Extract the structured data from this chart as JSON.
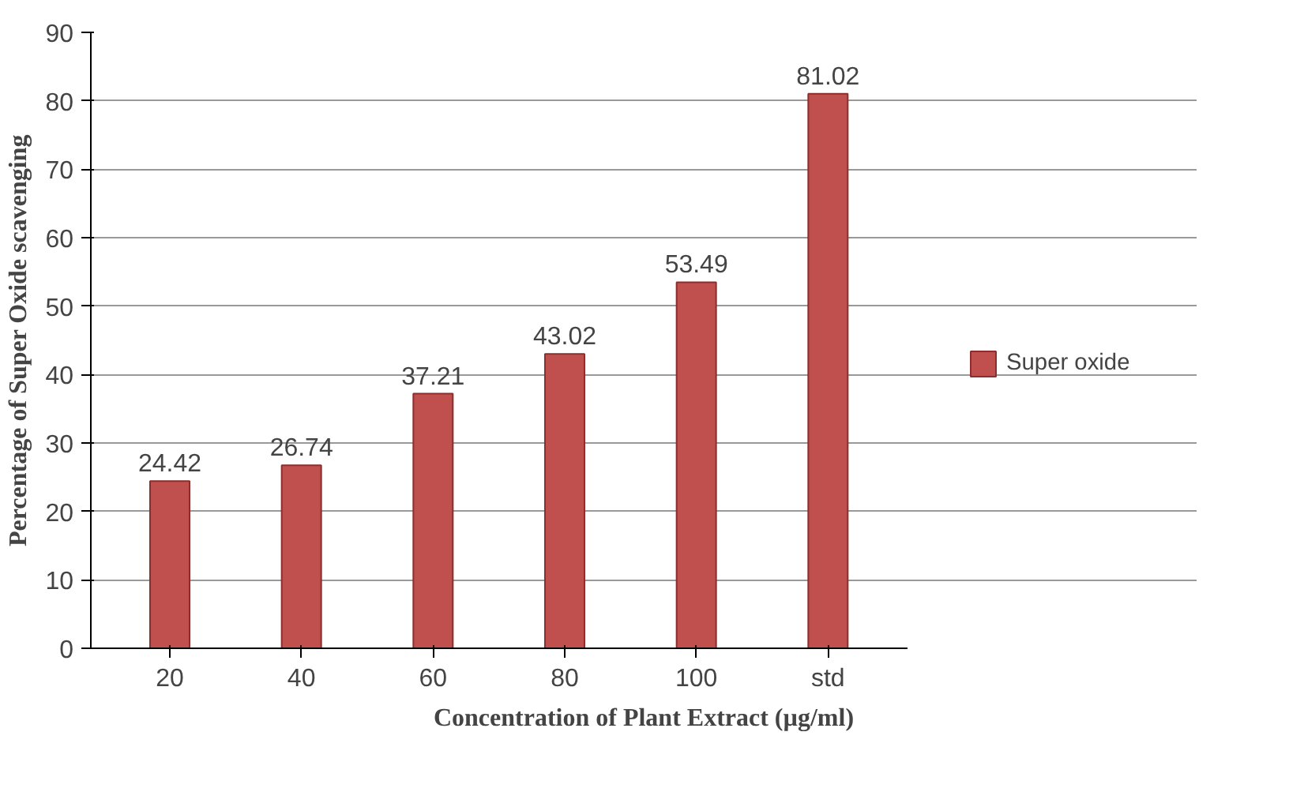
{
  "chart_data": {
    "type": "bar",
    "xlabel": "Concentration of Plant Extract (µg/ml)",
    "ylabel": "Percentage of Super Oxide scavenging",
    "categories": [
      "20",
      "40",
      "60",
      "80",
      "100",
      "std"
    ],
    "series": [
      {
        "name": "Super oxide",
        "color": "#c0504d",
        "values": [
          24.42,
          26.74,
          37.21,
          43.02,
          53.49,
          81.02
        ]
      }
    ],
    "ylim": [
      0,
      90
    ],
    "yticks": [
      0,
      10,
      20,
      30,
      40,
      50,
      60,
      70,
      80,
      90
    ],
    "grid": "y",
    "legend": "right",
    "data_labels": true
  }
}
